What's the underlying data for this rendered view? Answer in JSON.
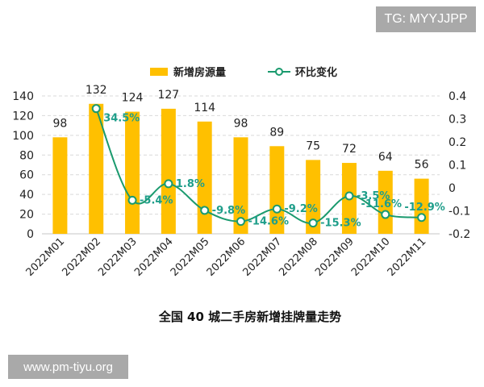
{
  "watermarks": {
    "top": "TG: MYYJJPP",
    "bottom": "www.pm-tiyu.org"
  },
  "chart_data": {
    "type": "bar+line",
    "title": "全国 40 城二手房新增挂牌量走势",
    "categories": [
      "2022M01",
      "2022M02",
      "2022M03",
      "2022M04",
      "2022M05",
      "2022M06",
      "2022M07",
      "2022M08",
      "2022M09",
      "2022M10",
      "2022M11"
    ],
    "series": [
      {
        "name": "新增房源量",
        "type": "bar",
        "axis": "left",
        "color": "#ffc000",
        "values": [
          98,
          132,
          124,
          127,
          114,
          98,
          89,
          75,
          72,
          64,
          56
        ],
        "labels": [
          "98",
          "132",
          "124",
          "127",
          "114",
          "98",
          "89",
          "75",
          "72",
          "64",
          "56"
        ]
      },
      {
        "name": "环比变化",
        "type": "line",
        "axis": "right",
        "color": "#1a9a6e",
        "label_color": "#1f9e8a",
        "values": [
          null,
          0.345,
          -0.054,
          0.018,
          -0.098,
          -0.146,
          -0.092,
          -0.153,
          -0.035,
          -0.116,
          -0.129
        ],
        "labels": [
          "",
          "34.5%",
          "-5.4%",
          "1.8%",
          "-9.8%",
          "-14.6%",
          "-9.2%",
          "-15.3%",
          "-3.5%",
          "-11.6%",
          "-12.9%"
        ]
      }
    ],
    "y_left": {
      "ylim": [
        0,
        140
      ],
      "ticks": [
        "0",
        "20",
        "40",
        "60",
        "80",
        "100",
        "120",
        "140"
      ]
    },
    "y_right": {
      "ylim": [
        -0.2,
        0.4
      ],
      "ticks": [
        "-0.2",
        "-0.1",
        "0",
        "0.1",
        "0.2",
        "0.3",
        "0.4"
      ]
    },
    "grid": true,
    "legend": "top"
  }
}
